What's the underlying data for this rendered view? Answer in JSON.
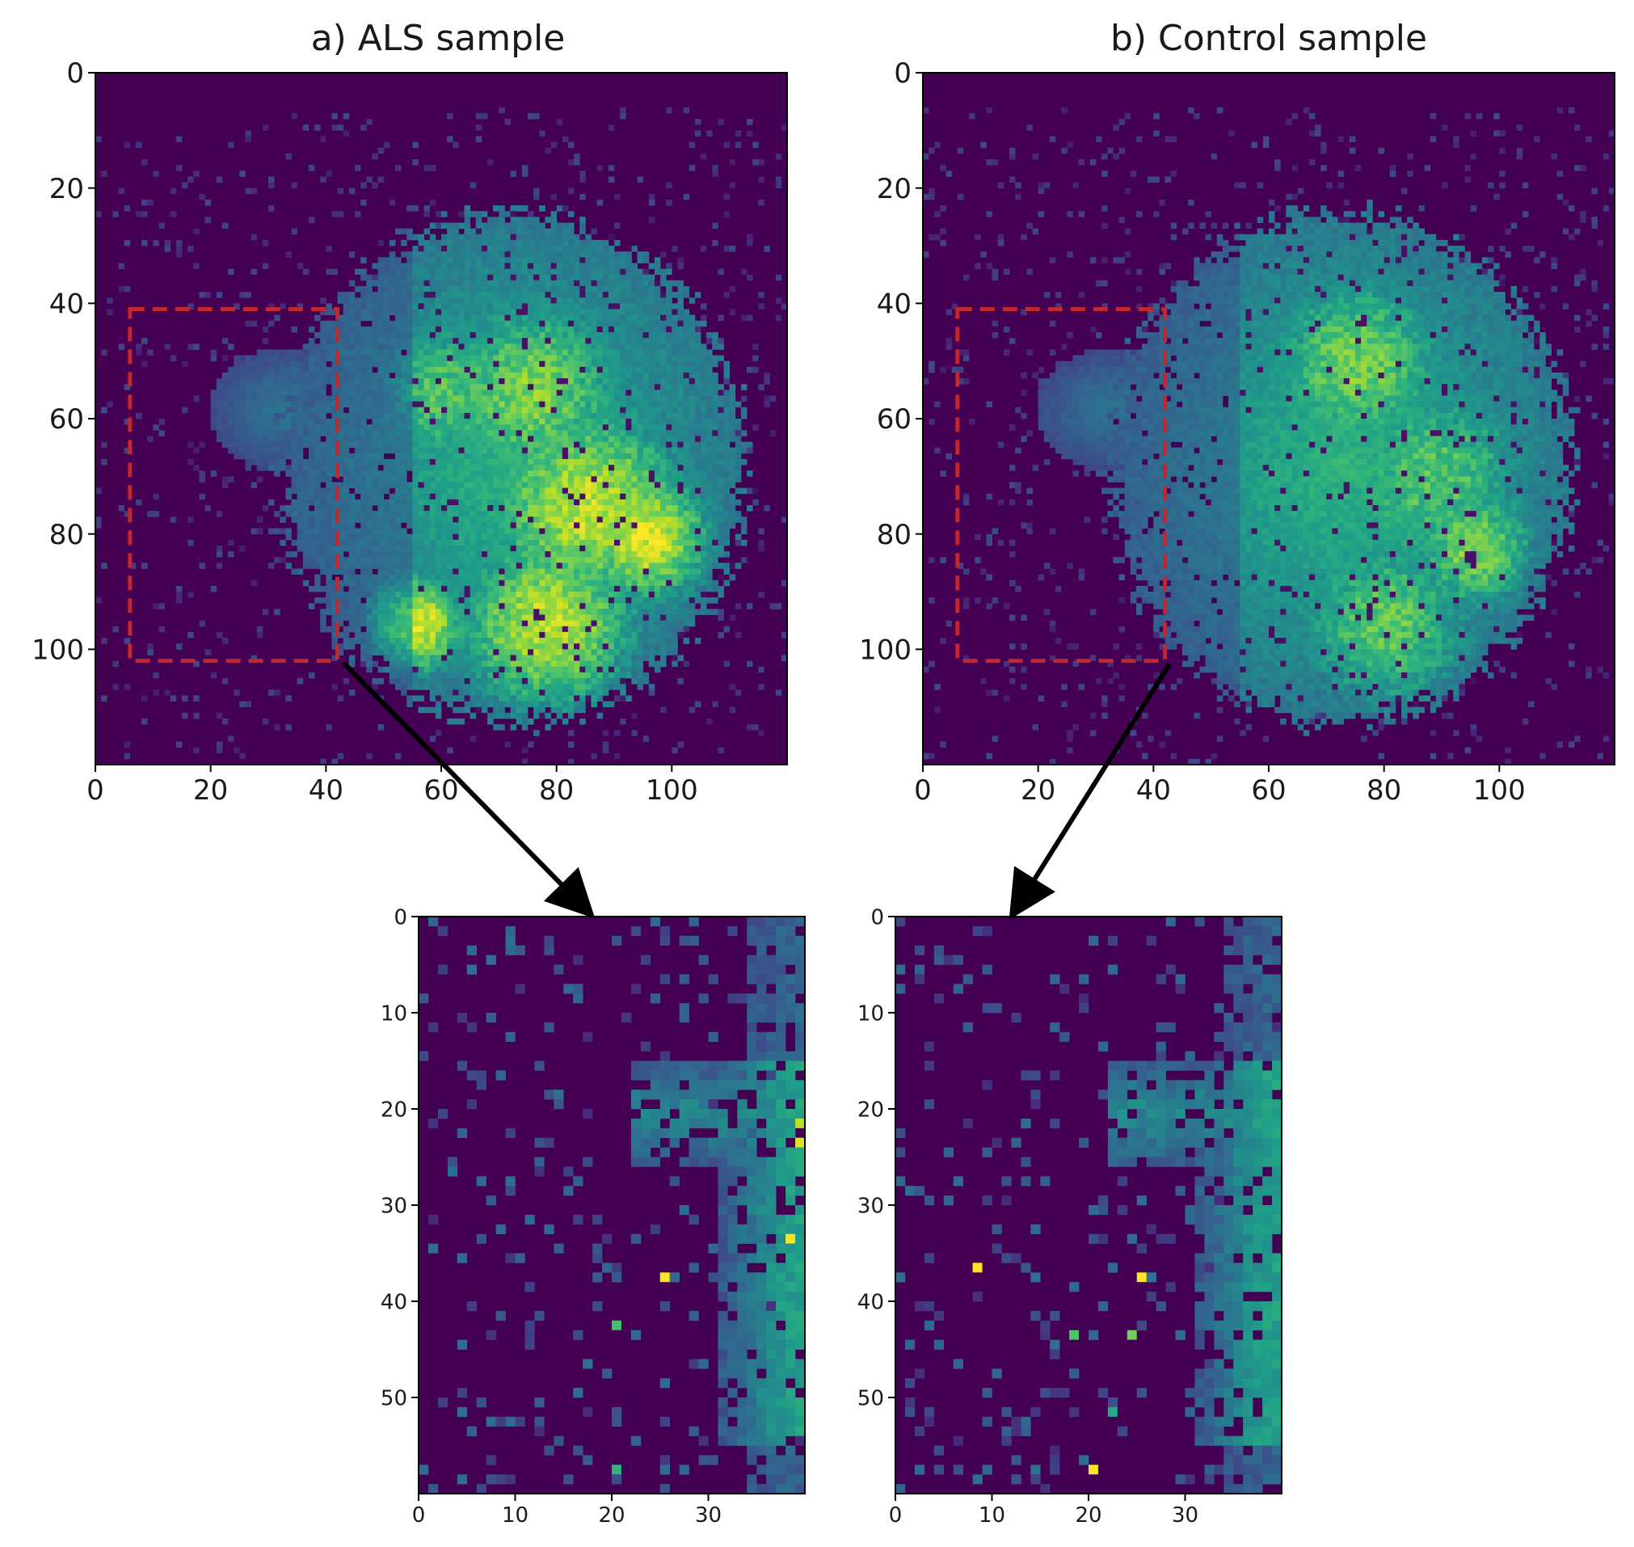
{
  "figure": {
    "colors": {
      "background": "#440154",
      "colormap": [
        "#440154",
        "#482878",
        "#3e4989",
        "#31688e",
        "#26828e",
        "#1f9e89",
        "#35b779",
        "#6ece58",
        "#b5de2b",
        "#fde725"
      ],
      "roi_box": "#c1272d",
      "arrow": "#000000"
    }
  },
  "chart_data": [
    {
      "type": "heatmap",
      "title": "a) ALS sample",
      "xlabel": "",
      "ylabel": "",
      "x_ticks": [
        0,
        20,
        40,
        60,
        80,
        100
      ],
      "y_ticks": [
        0,
        20,
        40,
        60,
        80,
        100
      ],
      "xlim": [
        0,
        120
      ],
      "ylim": [
        120,
        0
      ],
      "grid": false,
      "annotation": {
        "roi": {
          "x0": 6,
          "x1": 42,
          "y0": 41,
          "y1": 102
        },
        "roi_style": "red dashed rectangle",
        "arrow": "from ROI corner to zoom panel"
      },
      "hot_regions": [
        {
          "x": 60,
          "y": 55,
          "r": 12,
          "level": 0.72
        },
        {
          "x": 75,
          "y": 55,
          "r": 15,
          "level": 0.8
        },
        {
          "x": 85,
          "y": 75,
          "r": 16,
          "level": 0.9
        },
        {
          "x": 95,
          "y": 80,
          "r": 10,
          "level": 0.95
        },
        {
          "x": 78,
          "y": 95,
          "r": 14,
          "level": 0.9
        },
        {
          "x": 55,
          "y": 95,
          "r": 8,
          "level": 0.95
        }
      ]
    },
    {
      "type": "heatmap",
      "title": "b) Control sample",
      "xlabel": "",
      "ylabel": "",
      "x_ticks": [
        0,
        20,
        40,
        60,
        80,
        100
      ],
      "y_ticks": [
        0,
        20,
        40,
        60,
        80,
        100
      ],
      "xlim": [
        0,
        120
      ],
      "ylim": [
        120,
        0
      ],
      "grid": false,
      "annotation": {
        "roi": {
          "x0": 6,
          "x1": 42,
          "y0": 41,
          "y1": 102
        },
        "roi_style": "red dashed rectangle",
        "arrow": "from ROI corner to zoom panel"
      },
      "hot_regions": [
        {
          "x": 75,
          "y": 50,
          "r": 14,
          "level": 0.78
        },
        {
          "x": 88,
          "y": 70,
          "r": 16,
          "level": 0.72
        },
        {
          "x": 95,
          "y": 82,
          "r": 10,
          "level": 0.8
        },
        {
          "x": 80,
          "y": 95,
          "r": 14,
          "level": 0.75
        }
      ]
    },
    {
      "type": "heatmap",
      "title": "",
      "xlabel": "",
      "ylabel": "",
      "x_ticks": [
        0,
        10,
        20,
        30
      ],
      "y_ticks": [
        0,
        10,
        20,
        30,
        40,
        50
      ],
      "xlim": [
        0,
        40
      ],
      "ylim": [
        60,
        0
      ],
      "grid": false,
      "bright_cells": [
        {
          "x": 25,
          "y": 37,
          "v": 1.0
        },
        {
          "x": 39,
          "y": 21,
          "v": 0.9
        },
        {
          "x": 39,
          "y": 23,
          "v": 0.95
        },
        {
          "x": 38,
          "y": 33,
          "v": 0.98
        },
        {
          "x": 20,
          "y": 42,
          "v": 0.7
        },
        {
          "x": 20,
          "y": 57,
          "v": 0.65
        }
      ]
    },
    {
      "type": "heatmap",
      "title": "",
      "xlabel": "",
      "ylabel": "",
      "x_ticks": [
        0,
        10,
        20,
        30
      ],
      "y_ticks": [
        0,
        10,
        20,
        30,
        40,
        50
      ],
      "xlim": [
        0,
        40
      ],
      "ylim": [
        60,
        0
      ],
      "grid": false,
      "bright_cells": [
        {
          "x": 8,
          "y": 36,
          "v": 1.0
        },
        {
          "x": 25,
          "y": 37,
          "v": 1.0
        },
        {
          "x": 20,
          "y": 57,
          "v": 1.0
        },
        {
          "x": 24,
          "y": 43,
          "v": 0.78
        },
        {
          "x": 18,
          "y": 43,
          "v": 0.72
        },
        {
          "x": 22,
          "y": 51,
          "v": 0.6
        }
      ]
    }
  ]
}
